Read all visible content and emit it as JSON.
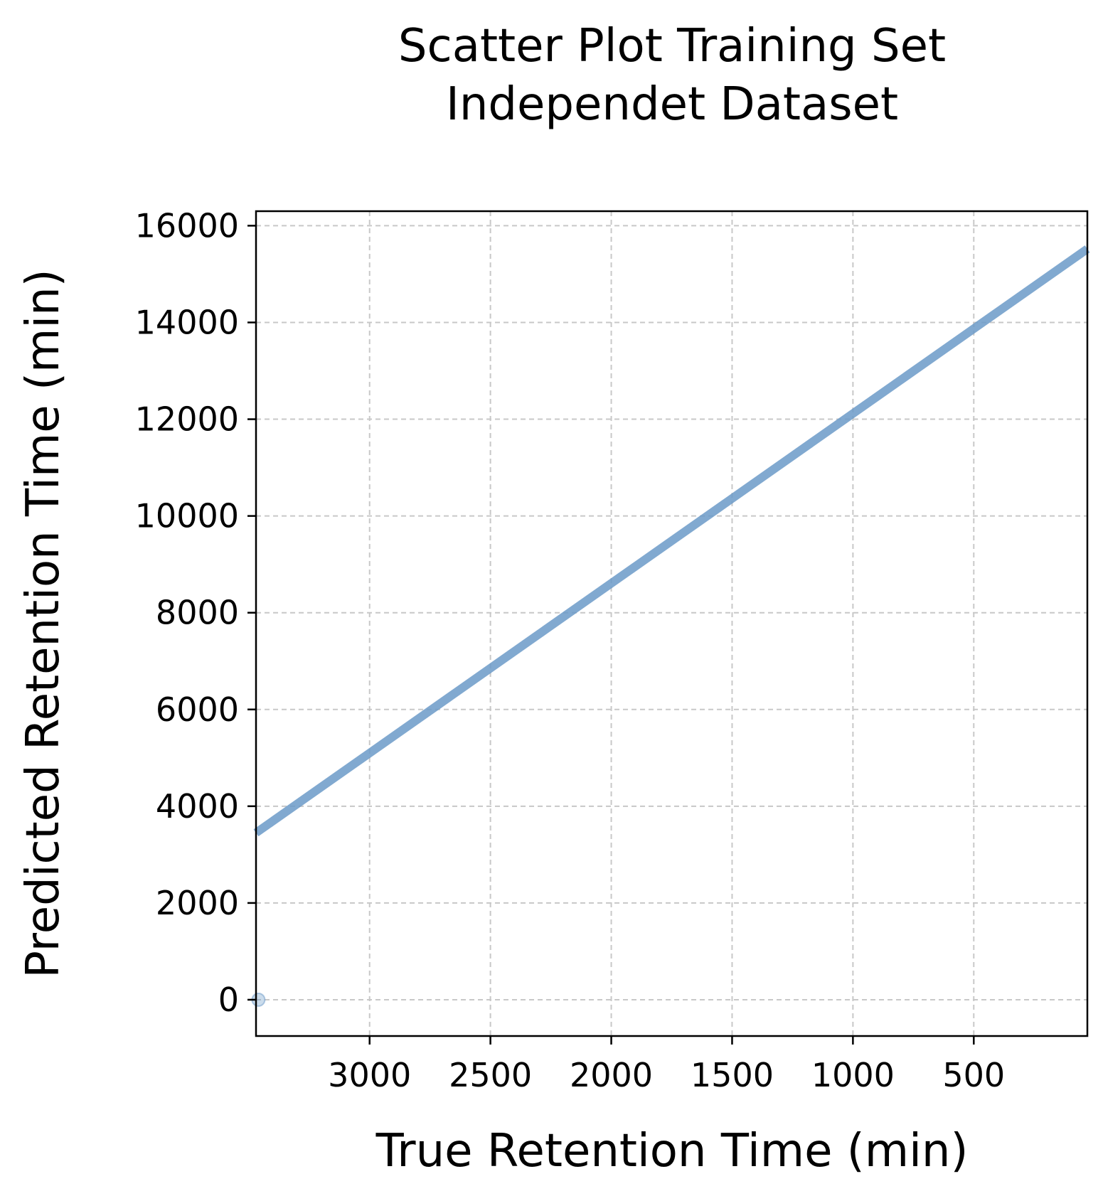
{
  "chart_data": {
    "type": "scatter",
    "title": [
      "Scatter Plot Training Set",
      "Independet Dataset"
    ],
    "xlabel": "True Retention Time (min)",
    "ylabel": "Predicted Retention Time (min)",
    "x_axis_inverted": true,
    "xlim": [
      3470,
      30
    ],
    "ylim": [
      -750,
      16300
    ],
    "x_ticks": [
      {
        "value": 3000,
        "label": "3000"
      },
      {
        "value": 2500,
        "label": "2500"
      },
      {
        "value": 2000,
        "label": "2000"
      },
      {
        "value": 1500,
        "label": "1500"
      },
      {
        "value": 1000,
        "label": "1000"
      },
      {
        "value": 500,
        "label": "500"
      }
    ],
    "y_ticks": [
      {
        "value": 0,
        "label": "0"
      },
      {
        "value": 2000,
        "label": "2000"
      },
      {
        "value": 4000,
        "label": "4000"
      },
      {
        "value": 6000,
        "label": "6000"
      },
      {
        "value": 8000,
        "label": "8000"
      },
      {
        "value": 10000,
        "label": "10000"
      },
      {
        "value": 12000,
        "label": "12000"
      },
      {
        "value": 14000,
        "label": "14000"
      },
      {
        "value": 16000,
        "label": "16000"
      }
    ],
    "grid": true,
    "points": [
      {
        "x": 3460,
        "y": 0
      }
    ],
    "fit_line": {
      "start": {
        "x": 3470,
        "y": 3450
      },
      "end": {
        "x": 30,
        "y": 15520
      }
    },
    "colors": {
      "series": "#6b9ac8",
      "grid": "#c8c8c8",
      "axes": "#000000"
    }
  }
}
